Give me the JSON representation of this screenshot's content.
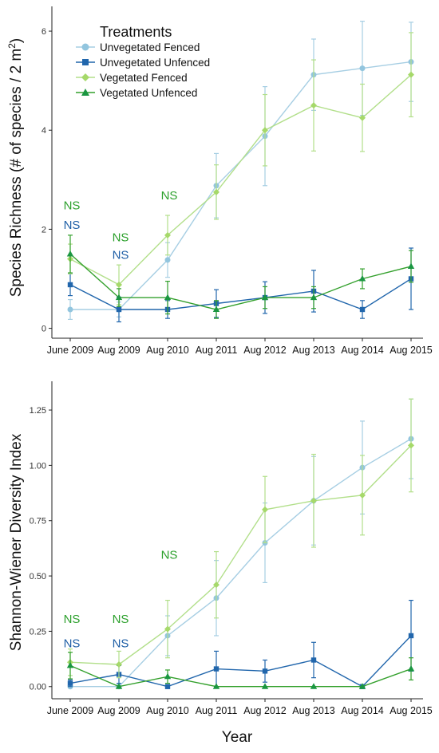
{
  "legend": {
    "title": "Treatments",
    "items": [
      {
        "label": "Unvegetated Fenced",
        "color": "#92c5de",
        "marker": "circle",
        "line": "#a6cee3"
      },
      {
        "label": "Unvegetated Unfenced",
        "color": "#2166ac",
        "marker": "square",
        "line": "#2166ac"
      },
      {
        "label": "Vegetated Fenced",
        "color": "#a6d96a",
        "marker": "diamond",
        "line": "#b2df8a"
      },
      {
        "label": "Vegetated Unfenced",
        "color": "#1a9641",
        "marker": "triangle",
        "line": "#33a02c"
      }
    ]
  },
  "xlabel": "Year",
  "ns_text": "NS",
  "chart_data": [
    {
      "type": "line",
      "ylabel": "Species Richness (# of species / 2 m²)",
      "ylabel_main": "Species Richness (# of species / 2 m",
      "ylabel_sup": "2",
      "ylabel_end": ")",
      "categories": [
        "June 2009",
        "Aug 2009",
        "Aug 2010",
        "Aug 2011",
        "Aug 2012",
        "Aug 2013",
        "Aug 2014",
        "Aug 2015"
      ],
      "ylim": [
        -0.2,
        6.5
      ],
      "yticks": [
        0,
        2,
        4,
        6
      ],
      "yticklabels": [
        "0",
        "2",
        "4",
        "6"
      ],
      "grid": false,
      "legend_position": "top-left",
      "series": [
        {
          "name": "Unvegetated Fenced",
          "values": [
            0.38,
            0.38,
            1.38,
            2.88,
            3.88,
            5.12,
            5.25,
            5.38
          ],
          "err": [
            0.2,
            0.15,
            0.35,
            0.65,
            1.0,
            0.72,
            0.95,
            0.8
          ]
        },
        {
          "name": "Unvegetated Unfenced",
          "values": [
            0.88,
            0.38,
            0.38,
            0.5,
            0.62,
            0.75,
            0.38,
            1.0
          ],
          "err": [
            0.22,
            0.25,
            0.18,
            0.28,
            0.32,
            0.42,
            0.18,
            0.62
          ]
        },
        {
          "name": "Vegetated Fenced",
          "values": [
            1.4,
            0.88,
            1.88,
            2.75,
            4.0,
            4.5,
            4.25,
            5.12
          ],
          "err": [
            0.3,
            0.4,
            0.4,
            0.55,
            0.72,
            0.92,
            0.68,
            0.85
          ]
        },
        {
          "name": "Vegetated Unfenced",
          "values": [
            1.5,
            0.62,
            0.62,
            0.38,
            0.62,
            0.62,
            1.0,
            1.25
          ],
          "err": [
            0.38,
            0.18,
            0.33,
            0.18,
            0.22,
            0.22,
            0.2,
            0.32
          ]
        }
      ],
      "annotations": [
        {
          "text": "NS",
          "x": "June 2009",
          "y": 2.5,
          "color": "#2ca02c"
        },
        {
          "text": "NS",
          "x": "June 2009",
          "y": 2.1,
          "color": "#1f5fa6"
        },
        {
          "text": "NS",
          "x": "Aug 2009",
          "y": 1.85,
          "color": "#2ca02c"
        },
        {
          "text": "NS",
          "x": "Aug 2009",
          "y": 1.5,
          "color": "#1f5fa6"
        },
        {
          "text": "NS",
          "x": "Aug 2010",
          "y": 2.7,
          "color": "#2ca02c"
        }
      ]
    },
    {
      "type": "line",
      "ylabel": "Shannon-Wiener Diversity Index",
      "categories": [
        "June 2009",
        "Aug 2009",
        "Aug 2010",
        "Aug 2011",
        "Aug 2012",
        "Aug 2013",
        "Aug 2014",
        "Aug 2015"
      ],
      "ylim": [
        -0.055,
        1.38
      ],
      "yticks": [
        0,
        0.25,
        0.5,
        0.75,
        1.0,
        1.25
      ],
      "yticklabels": [
        "0.00",
        "0.25",
        "0.50",
        "0.75",
        "1.00",
        "1.25"
      ],
      "grid": false,
      "series": [
        {
          "name": "Unvegetated Fenced",
          "values": [
            0.0,
            0.0,
            0.23,
            0.4,
            0.65,
            0.84,
            0.99,
            1.12
          ],
          "err": [
            0.0,
            0.0,
            0.09,
            0.17,
            0.18,
            0.2,
            0.21,
            0.18
          ]
        },
        {
          "name": "Unvegetated Unfenced",
          "values": [
            0.015,
            0.055,
            0.0,
            0.08,
            0.07,
            0.12,
            0.0,
            0.23
          ],
          "err": [
            0.015,
            0.04,
            0.0,
            0.08,
            0.05,
            0.08,
            0.0,
            0.16
          ]
        },
        {
          "name": "Vegetated Fenced",
          "values": [
            0.11,
            0.1,
            0.26,
            0.46,
            0.8,
            0.84,
            0.865,
            1.09
          ],
          "err": [
            0.06,
            0.06,
            0.13,
            0.15,
            0.15,
            0.21,
            0.18,
            0.21
          ]
        },
        {
          "name": "Vegetated Unfenced",
          "values": [
            0.095,
            0.0,
            0.045,
            0.0,
            0.0,
            0.0,
            0.0,
            0.08
          ],
          "err": [
            0.06,
            0.0,
            0.03,
            0.0,
            0.0,
            0.0,
            0.0,
            0.05
          ]
        }
      ],
      "annotations": [
        {
          "text": "NS",
          "x": "June 2009",
          "y": 0.31,
          "color": "#2ca02c"
        },
        {
          "text": "NS",
          "x": "June 2009",
          "y": 0.2,
          "color": "#1f5fa6"
        },
        {
          "text": "NS",
          "x": "Aug 2009",
          "y": 0.31,
          "color": "#2ca02c"
        },
        {
          "text": "NS",
          "x": "Aug 2009",
          "y": 0.2,
          "color": "#1f5fa6"
        },
        {
          "text": "NS",
          "x": "Aug 2010",
          "y": 0.6,
          "color": "#2ca02c"
        }
      ]
    }
  ]
}
